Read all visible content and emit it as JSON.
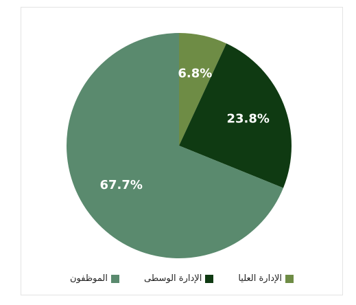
{
  "chart_data": {
    "type": "pie",
    "title": "",
    "slices": [
      {
        "name": "الإدارة العليا",
        "value": 6.8,
        "label": "6.8%",
        "color": "#6e8c45"
      },
      {
        "name": "الإدارة الوسطى",
        "value": 23.8,
        "label": "23.8%",
        "color": "#0f3a12"
      },
      {
        "name": "الموظفون",
        "value": 67.7,
        "label": "67.7%",
        "color": "#5a8a6e"
      }
    ],
    "legend_position": "bottom"
  }
}
